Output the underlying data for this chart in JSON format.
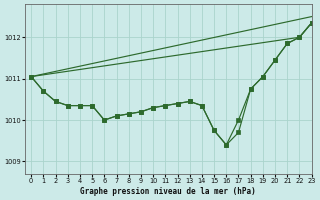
{
  "title": "Graphe pression niveau de la mer (hPa)",
  "bg_color": "#cceae8",
  "grid_color": "#aad4cc",
  "line_color": "#2d6a2d",
  "xlim": [
    -0.5,
    23
  ],
  "ylim": [
    1008.7,
    1012.8
  ],
  "yticks": [
    1009,
    1010,
    1011,
    1012
  ],
  "xticks": [
    0,
    1,
    2,
    3,
    4,
    5,
    6,
    7,
    8,
    9,
    10,
    11,
    12,
    13,
    14,
    15,
    16,
    17,
    18,
    19,
    20,
    21,
    22,
    23
  ],
  "series_no_marker": [
    [
      [
        0,
        23
      ],
      [
        1011.05,
        1012.5
      ]
    ],
    [
      [
        0,
        22,
        23
      ],
      [
        1011.05,
        1012.0,
        1012.35
      ]
    ]
  ],
  "series_with_marker": [
    [
      1011.05,
      1010.7,
      1010.45,
      1010.35,
      1010.35,
      1010.35,
      1010.0,
      1010.1,
      1010.15,
      1010.2,
      1010.3,
      1010.35,
      1010.4,
      1010.45,
      1010.35,
      1009.75,
      1009.4,
      1009.7,
      1010.75,
      1011.05,
      1011.45,
      1011.85,
      1012.0,
      1012.35
    ],
    [
      1011.05,
      1010.7,
      1010.45,
      1010.35,
      1010.35,
      1010.35,
      1010.0,
      1010.1,
      1010.15,
      1010.2,
      1010.3,
      1010.35,
      1010.4,
      1010.45,
      1010.35,
      1009.75,
      1009.4,
      1010.0,
      1010.75,
      1011.05,
      1011.45,
      1011.85,
      1012.0,
      1012.35
    ]
  ]
}
